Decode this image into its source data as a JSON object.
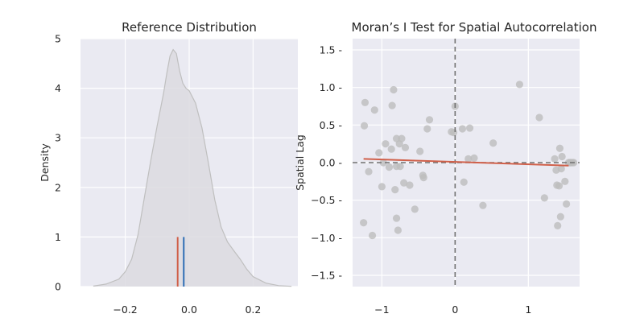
{
  "chart_data": [
    {
      "type": "area",
      "title": "Reference Distribution",
      "xlabel": "",
      "ylabel": "Density",
      "xlim": [
        -0.34,
        0.34
      ],
      "ylim": [
        0,
        5
      ],
      "xticks": [
        -0.2,
        0.0,
        0.2
      ],
      "xtick_labels": [
        "−0.2",
        "0.0",
        "0.2"
      ],
      "yticks": [
        0,
        1,
        2,
        3,
        4,
        5
      ],
      "ytick_labels": [
        "0",
        "1",
        "2",
        "3",
        "4",
        "5"
      ],
      "grid": true,
      "colors": {
        "background": "#eaeaf2",
        "grid": "#ffffff",
        "kde_fill": "#dcdbe0",
        "kde_line": "#bfbfbf",
        "expected_line": "#d0604a",
        "observed_line": "#2f6eb5"
      },
      "kde": {
        "x": [
          -0.3,
          -0.26,
          -0.22,
          -0.2,
          -0.18,
          -0.16,
          -0.14,
          -0.12,
          -0.1,
          -0.08,
          -0.07,
          -0.06,
          -0.05,
          -0.04,
          -0.03,
          -0.02,
          -0.01,
          0.0,
          0.02,
          0.04,
          0.06,
          0.08,
          0.1,
          0.12,
          0.14,
          0.16,
          0.18,
          0.2,
          0.24,
          0.28,
          0.32
        ],
        "y": [
          0.01,
          0.05,
          0.15,
          0.3,
          0.55,
          1.05,
          1.8,
          2.55,
          3.25,
          3.9,
          4.3,
          4.65,
          4.78,
          4.7,
          4.35,
          4.1,
          4.0,
          3.95,
          3.7,
          3.2,
          2.5,
          1.75,
          1.2,
          0.9,
          0.72,
          0.55,
          0.35,
          0.2,
          0.07,
          0.02,
          0.005
        ]
      },
      "vlines": [
        {
          "x": -0.036,
          "height": 1,
          "kind": "expected"
        },
        {
          "x": -0.017,
          "height": 1,
          "kind": "observed"
        }
      ]
    },
    {
      "type": "scatter",
      "title": "Moran’s I Test for Spatial Autocorrelation",
      "xlabel": "",
      "ylabel": "Spatial Lag",
      "xlim": [
        -1.4,
        1.7
      ],
      "ylim": [
        -1.65,
        1.65
      ],
      "xticks": [
        -1,
        0,
        1
      ],
      "xtick_labels": [
        "−1",
        "0",
        "1"
      ],
      "yticks": [
        -1.5,
        -1.0,
        -0.5,
        0.0,
        0.5,
        1.0,
        1.5
      ],
      "ytick_labels": [
        "−1.5 -",
        "−1.0 -",
        "−0.5 -",
        "0.0 -",
        "0.5 -",
        "1.0 -",
        "1.5 -"
      ],
      "grid": true,
      "colors": {
        "background": "#eaeaf2",
        "grid": "#ffffff",
        "points": "#bdbdbd",
        "fit_line": "#d0604a",
        "ref_lines": "#707070"
      },
      "reference_lines": {
        "x": 0,
        "y": 0
      },
      "fit": {
        "x": [
          -1.25,
          1.55
        ],
        "y": [
          0.05,
          -0.04
        ]
      },
      "points": {
        "x": [
          -1.23,
          -1.24,
          -1.18,
          -1.25,
          -1.13,
          -1.1,
          -1.04,
          -1.0,
          -0.98,
          -0.95,
          -0.9,
          -0.87,
          -0.86,
          -0.84,
          -0.82,
          -0.8,
          -0.8,
          -0.8,
          -0.78,
          -0.76,
          -0.75,
          -0.73,
          -0.7,
          -0.68,
          -0.62,
          -0.55,
          -0.48,
          -0.44,
          -0.43,
          -0.38,
          -0.35,
          -0.05,
          -0.02,
          0.0,
          0.1,
          0.12,
          0.18,
          0.2,
          0.26,
          0.38,
          0.52,
          0.88,
          1.15,
          1.22,
          1.36,
          1.38,
          1.39,
          1.4,
          1.42,
          1.43,
          1.44,
          1.45,
          1.46,
          1.5,
          1.52,
          1.55,
          1.57,
          1.58,
          1.6,
          1.62
        ],
        "y": [
          0.8,
          0.49,
          -0.12,
          -0.8,
          -0.97,
          0.7,
          0.13,
          -0.32,
          0.0,
          0.25,
          -0.06,
          0.18,
          0.76,
          0.97,
          -0.36,
          0.32,
          -0.05,
          -0.74,
          -0.9,
          0.25,
          -0.05,
          0.32,
          -0.27,
          0.2,
          -0.3,
          -0.62,
          0.15,
          -0.17,
          -0.2,
          0.45,
          0.57,
          0.41,
          0.4,
          0.75,
          0.45,
          -0.26,
          0.05,
          0.46,
          0.06,
          -0.57,
          0.26,
          1.04,
          0.6,
          -0.47,
          0.05,
          -0.1,
          -0.3,
          -0.84,
          -0.31,
          0.19,
          -0.72,
          -0.08,
          0.08,
          -0.25,
          -0.55,
          0.0,
          0.0,
          0.0,
          0.0,
          0.0
        ]
      }
    }
  ]
}
